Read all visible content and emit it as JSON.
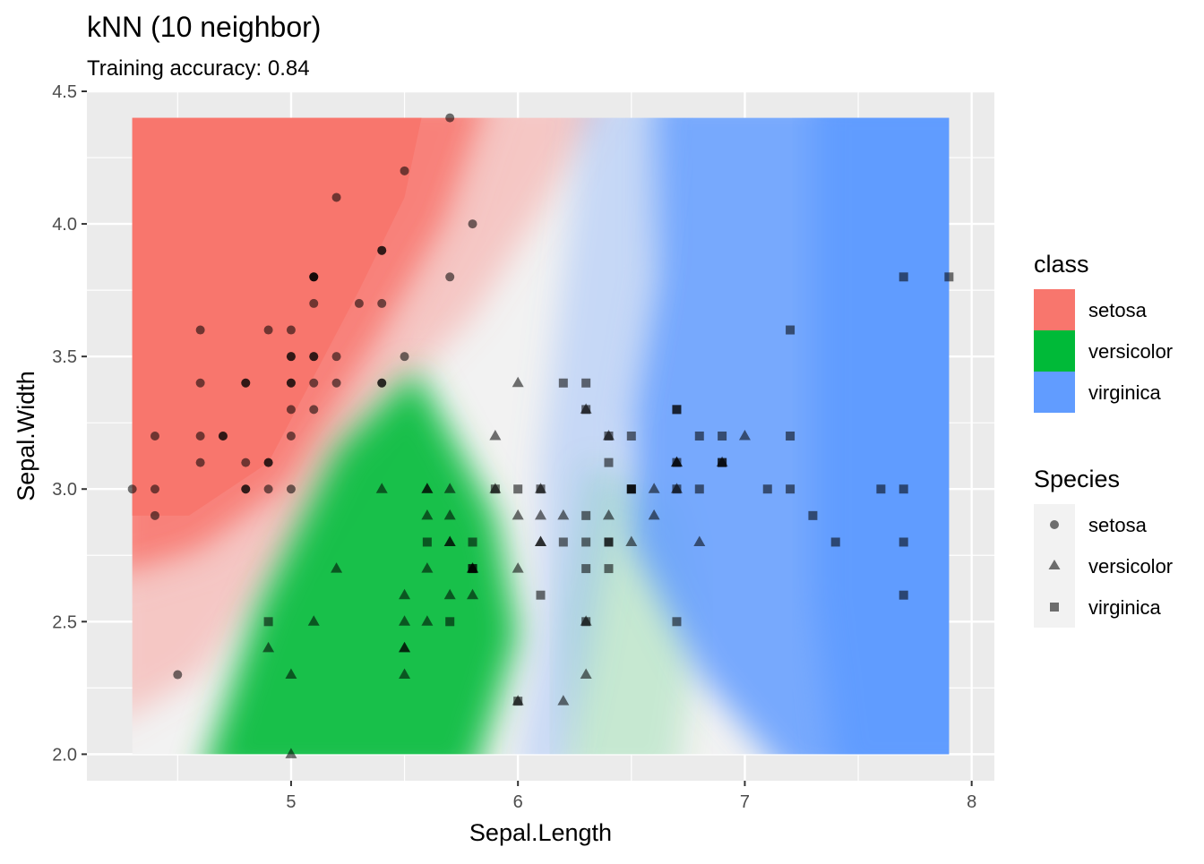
{
  "chart_data": {
    "type": "scatter",
    "title": "kNN (10 neighbor)",
    "subtitle": "Training accuracy: 0.84",
    "xlabel": "Sepal.Length",
    "ylabel": "Sepal.Width",
    "xlim": [
      4.1,
      8.1
    ],
    "ylim": [
      1.9,
      4.5
    ],
    "grid_extent": {
      "x": [
        4.3,
        7.9
      ],
      "y": [
        2.0,
        4.4
      ]
    },
    "xticks": [
      5,
      6,
      7,
      8
    ],
    "yticks": [
      2.0,
      2.5,
      3.0,
      3.5,
      4.0,
      4.5
    ],
    "grid": true,
    "legend_position": "right",
    "background_regions": {
      "description": "kNN decision-region raster; fill color = predicted class, opacity = vote share",
      "classes": [
        "setosa",
        "versicolor",
        "virginica"
      ]
    },
    "legends": {
      "class": {
        "title": "class",
        "items": [
          {
            "label": "setosa",
            "color": "#F8766D"
          },
          {
            "label": "versicolor",
            "color": "#00BA38"
          },
          {
            "label": "virginica",
            "color": "#619CFF"
          }
        ]
      },
      "species": {
        "title": "Species",
        "items": [
          {
            "label": "setosa",
            "shape": "circle"
          },
          {
            "label": "versicolor",
            "shape": "triangle"
          },
          {
            "label": "virginica",
            "shape": "square"
          }
        ]
      }
    },
    "series": [
      {
        "name": "setosa",
        "shape": "circle",
        "points": [
          [
            5.1,
            3.5
          ],
          [
            4.9,
            3.0
          ],
          [
            4.7,
            3.2
          ],
          [
            4.6,
            3.1
          ],
          [
            5.0,
            3.6
          ],
          [
            5.4,
            3.9
          ],
          [
            4.6,
            3.4
          ],
          [
            5.0,
            3.4
          ],
          [
            4.4,
            2.9
          ],
          [
            4.9,
            3.1
          ],
          [
            5.4,
            3.7
          ],
          [
            4.8,
            3.4
          ],
          [
            4.8,
            3.0
          ],
          [
            4.3,
            3.0
          ],
          [
            5.8,
            4.0
          ],
          [
            5.7,
            4.4
          ],
          [
            5.4,
            3.9
          ],
          [
            5.1,
            3.5
          ],
          [
            5.7,
            3.8
          ],
          [
            5.1,
            3.8
          ],
          [
            5.4,
            3.4
          ],
          [
            5.1,
            3.7
          ],
          [
            4.6,
            3.6
          ],
          [
            5.1,
            3.3
          ],
          [
            4.8,
            3.4
          ],
          [
            5.0,
            3.0
          ],
          [
            5.0,
            3.4
          ],
          [
            5.2,
            3.5
          ],
          [
            5.2,
            3.4
          ],
          [
            4.7,
            3.2
          ],
          [
            4.8,
            3.1
          ],
          [
            5.4,
            3.4
          ],
          [
            5.2,
            4.1
          ],
          [
            5.5,
            4.2
          ],
          [
            4.9,
            3.1
          ],
          [
            5.0,
            3.2
          ],
          [
            5.5,
            3.5
          ],
          [
            4.9,
            3.6
          ],
          [
            4.4,
            3.0
          ],
          [
            5.1,
            3.4
          ],
          [
            5.0,
            3.5
          ],
          [
            4.5,
            2.3
          ],
          [
            4.4,
            3.2
          ],
          [
            5.0,
            3.5
          ],
          [
            5.1,
            3.8
          ],
          [
            4.8,
            3.0
          ],
          [
            5.1,
            3.8
          ],
          [
            4.6,
            3.2
          ],
          [
            5.3,
            3.7
          ],
          [
            5.0,
            3.3
          ]
        ]
      },
      {
        "name": "versicolor",
        "shape": "triangle",
        "points": [
          [
            7.0,
            3.2
          ],
          [
            6.4,
            3.2
          ],
          [
            6.9,
            3.1
          ],
          [
            5.5,
            2.3
          ],
          [
            6.5,
            2.8
          ],
          [
            5.7,
            2.8
          ],
          [
            6.3,
            3.3
          ],
          [
            4.9,
            2.4
          ],
          [
            6.6,
            2.9
          ],
          [
            5.2,
            2.7
          ],
          [
            5.0,
            2.0
          ],
          [
            5.9,
            3.0
          ],
          [
            6.0,
            2.2
          ],
          [
            6.1,
            2.9
          ],
          [
            5.6,
            2.9
          ],
          [
            6.7,
            3.1
          ],
          [
            5.6,
            3.0
          ],
          [
            5.8,
            2.7
          ],
          [
            6.2,
            2.2
          ],
          [
            5.6,
            2.5
          ],
          [
            5.9,
            3.2
          ],
          [
            6.1,
            2.8
          ],
          [
            6.3,
            2.5
          ],
          [
            6.1,
            2.8
          ],
          [
            6.4,
            2.9
          ],
          [
            6.6,
            3.0
          ],
          [
            6.8,
            2.8
          ],
          [
            6.7,
            3.0
          ],
          [
            6.0,
            2.9
          ],
          [
            5.7,
            2.6
          ],
          [
            5.5,
            2.4
          ],
          [
            5.5,
            2.4
          ],
          [
            5.8,
            2.7
          ],
          [
            6.0,
            2.7
          ],
          [
            5.4,
            3.0
          ],
          [
            6.0,
            3.4
          ],
          [
            6.7,
            3.1
          ],
          [
            6.3,
            2.3
          ],
          [
            5.6,
            3.0
          ],
          [
            5.5,
            2.5
          ],
          [
            5.5,
            2.6
          ],
          [
            6.1,
            3.0
          ],
          [
            5.8,
            2.6
          ],
          [
            5.0,
            2.3
          ],
          [
            5.6,
            2.7
          ],
          [
            5.7,
            3.0
          ],
          [
            5.7,
            2.9
          ],
          [
            6.2,
            2.9
          ],
          [
            5.1,
            2.5
          ],
          [
            5.7,
            2.8
          ]
        ]
      },
      {
        "name": "virginica",
        "shape": "square",
        "points": [
          [
            6.3,
            3.3
          ],
          [
            5.8,
            2.7
          ],
          [
            7.1,
            3.0
          ],
          [
            6.3,
            2.9
          ],
          [
            6.5,
            3.0
          ],
          [
            7.6,
            3.0
          ],
          [
            4.9,
            2.5
          ],
          [
            7.3,
            2.9
          ],
          [
            6.7,
            2.5
          ],
          [
            7.2,
            3.6
          ],
          [
            6.5,
            3.2
          ],
          [
            6.4,
            2.7
          ],
          [
            6.8,
            3.0
          ],
          [
            5.7,
            2.5
          ],
          [
            5.8,
            2.8
          ],
          [
            6.4,
            3.2
          ],
          [
            6.5,
            3.0
          ],
          [
            7.7,
            3.8
          ],
          [
            7.7,
            2.6
          ],
          [
            6.0,
            2.2
          ],
          [
            6.9,
            3.2
          ],
          [
            5.6,
            2.8
          ],
          [
            7.7,
            2.8
          ],
          [
            6.3,
            2.7
          ],
          [
            6.7,
            3.3
          ],
          [
            7.2,
            3.2
          ],
          [
            6.2,
            2.8
          ],
          [
            6.1,
            3.0
          ],
          [
            6.4,
            2.8
          ],
          [
            7.2,
            3.0
          ],
          [
            7.4,
            2.8
          ],
          [
            7.9,
            3.8
          ],
          [
            6.4,
            2.8
          ],
          [
            6.3,
            2.8
          ],
          [
            6.1,
            2.6
          ],
          [
            7.7,
            3.0
          ],
          [
            6.3,
            3.4
          ],
          [
            6.4,
            3.1
          ],
          [
            6.0,
            3.0
          ],
          [
            6.9,
            3.1
          ],
          [
            6.7,
            3.1
          ],
          [
            6.9,
            3.1
          ],
          [
            5.8,
            2.7
          ],
          [
            6.8,
            3.2
          ],
          [
            6.7,
            3.3
          ],
          [
            6.7,
            3.0
          ],
          [
            6.3,
            2.5
          ],
          [
            6.5,
            3.0
          ],
          [
            6.2,
            3.4
          ],
          [
            5.9,
            3.0
          ]
        ]
      }
    ]
  }
}
